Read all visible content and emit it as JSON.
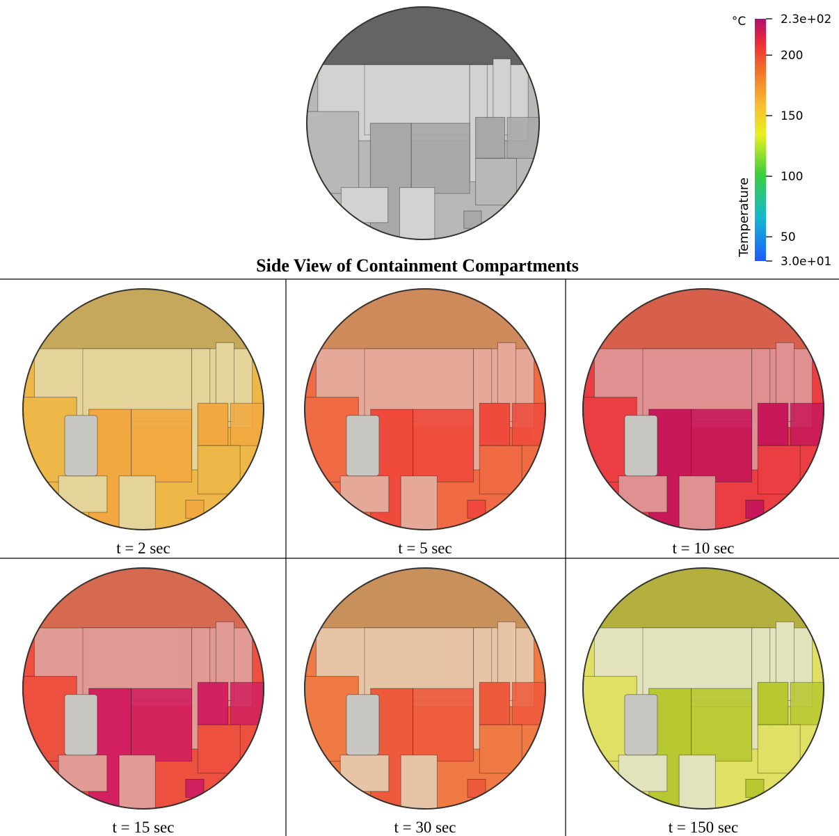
{
  "header": {
    "title": "Side View of Containment Compartments"
  },
  "colorbar": {
    "unit": "°C",
    "label": "Temperature",
    "range": [
      30,
      230
    ],
    "ticks": [
      {
        "value": 230,
        "label": "2.3e+02"
      },
      200,
      150,
      100,
      50,
      {
        "value": 30,
        "label": "3.0e+01"
      }
    ]
  },
  "panels": [
    {
      "caption": "t = 2 sec"
    },
    {
      "caption": "t = 5 sec"
    },
    {
      "caption": "t = 10 sec"
    },
    {
      "caption": "t = 15 sec"
    },
    {
      "caption": "t = 30 sec"
    },
    {
      "caption": "t = 150 sec"
    }
  ]
}
